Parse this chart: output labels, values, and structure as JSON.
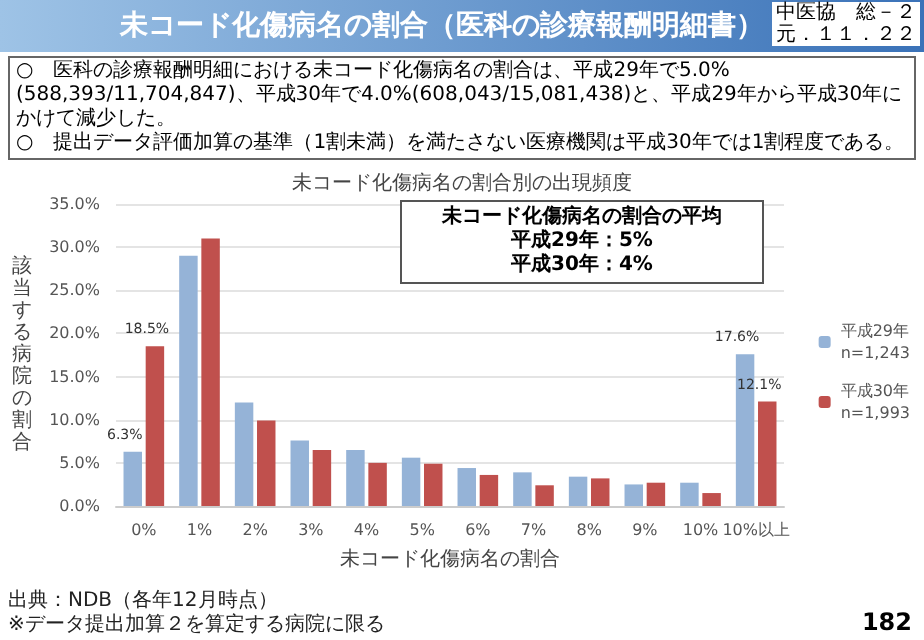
{
  "chart_data": {
    "type": "bar",
    "title": "未コード化傷病名の割合（医科の診療報酬明細書）",
    "subtitle": "未コード化傷病名の割合別の出現頻度",
    "xlabel": "未コード化傷病名の割合",
    "ylabel": "該当する病院の割合",
    "categories": [
      "0%",
      "1%",
      "2%",
      "3%",
      "4%",
      "5%",
      "6%",
      "7%",
      "8%",
      "9%",
      "10%",
      "10%以上"
    ],
    "series": [
      {
        "name": "平成29年\nn=1,243",
        "color": "#95b3d7",
        "values": [
          6.3,
          29.0,
          12.0,
          7.6,
          6.5,
          5.6,
          4.4,
          3.9,
          3.4,
          2.5,
          2.7,
          17.6
        ],
        "value_labels": [
          "6.3%",
          null,
          null,
          null,
          null,
          null,
          null,
          null,
          null,
          null,
          null,
          "17.6%"
        ]
      },
      {
        "name": "平成30年\nn=1,993",
        "color": "#c0504d",
        "values": [
          18.5,
          31.0,
          9.9,
          6.5,
          5.0,
          4.9,
          3.6,
          2.4,
          3.2,
          2.7,
          1.5,
          12.1
        ],
        "value_labels": [
          "18.5%",
          null,
          null,
          null,
          null,
          null,
          null,
          null,
          null,
          null,
          null,
          "12.1%"
        ]
      }
    ],
    "ylim": [
      0,
      35
    ],
    "yticks": [
      {
        "value": 0,
        "label": "0.0%"
      },
      {
        "value": 5,
        "label": "5.0%"
      },
      {
        "value": 10,
        "label": "10.0%"
      },
      {
        "value": 15,
        "label": "15.0%"
      },
      {
        "value": 20,
        "label": "20.0%"
      },
      {
        "value": 25,
        "label": "25.0%"
      },
      {
        "value": 30,
        "label": "30.0%"
      },
      {
        "value": 35,
        "label": "35.0%"
      }
    ],
    "grid": "y",
    "legend": "right",
    "annotations": [
      "中医協　総－２",
      "元．１１．２２",
      "○　医科の診療報酬明細における未コード化傷病名の割合は、平成29年で5.0%(588,393/11,704,847)、平成30年で4.0%(608,043/15,081,438)と、平成29年から平成30年にかけて減少した。",
      "○　提出データ評価加算の基準（1割未満）を満たさない医療機関は平成30年では1割程度である。",
      "未コード化傷病名の割合の平均",
      "平成29年：5%",
      "平成30年：4%",
      "出典：NDB（各年12月時点）",
      "※データ提出加算２を算定する病院に限る",
      "182"
    ]
  }
}
